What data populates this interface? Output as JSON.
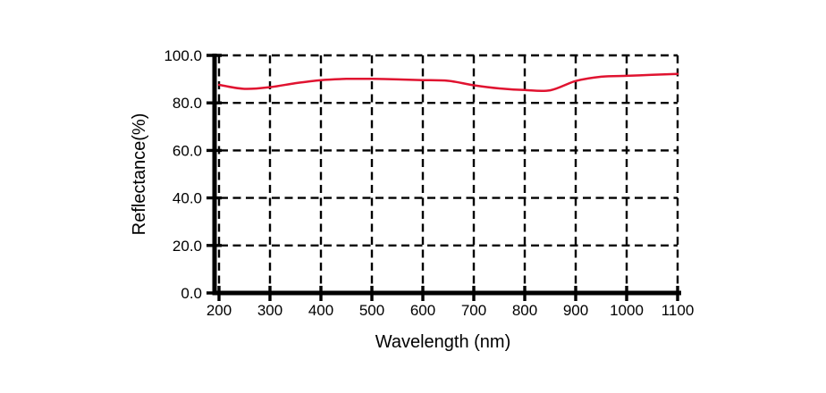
{
  "figure": {
    "background": "#ffffff",
    "axis_color": "#000000",
    "text_color": "#000000"
  },
  "chart_data": {
    "type": "line",
    "title": "",
    "xlabel": "Wavelength (nm)",
    "ylabel": "Reflectance(%)",
    "xlim": [
      200,
      1100
    ],
    "ylim": [
      0,
      100
    ],
    "grid": {
      "visible": true,
      "line_style": "dashed",
      "color": "#000000"
    },
    "legend_position": "none",
    "xticks": [
      200,
      300,
      400,
      500,
      600,
      700,
      800,
      900,
      1000,
      1100
    ],
    "xtick_labels": [
      "200",
      "300",
      "400",
      "500",
      "600",
      "700",
      "800",
      "900",
      "1000",
      "1100"
    ],
    "yticks": [
      0,
      20,
      40,
      60,
      80,
      100
    ],
    "ytick_labels": [
      "0.0",
      "20.0",
      "40.0",
      "60.0",
      "80.0",
      "100.0"
    ],
    "series": [
      {
        "name": "Reflectance",
        "color": "#e01330",
        "x": [
          200,
          250,
          300,
          350,
          400,
          450,
          500,
          550,
          600,
          650,
          700,
          750,
          800,
          850,
          900,
          950,
          1000,
          1050,
          1100
        ],
        "y": [
          87.6,
          85.9,
          86.6,
          88.3,
          89.6,
          90.1,
          90.1,
          89.9,
          89.6,
          89.3,
          87.4,
          86.1,
          85.4,
          85.3,
          89.2,
          91.0,
          91.4,
          91.8,
          92.2
        ]
      }
    ]
  }
}
